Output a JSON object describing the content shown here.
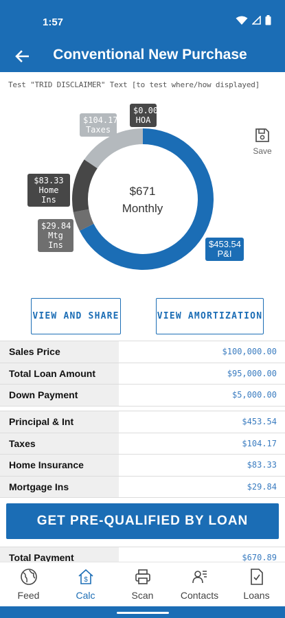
{
  "status": {
    "time": "1:57"
  },
  "header": {
    "title": "Conventional New Purchase"
  },
  "disclaimer": "Test \"TRID DISCLAIMER\" Text [to test where/how displayed]",
  "chart_data": {
    "type": "pie",
    "categories": [
      "P&I",
      "Mtg Ins",
      "Home Ins",
      "Taxes",
      "HOA"
    ],
    "values": [
      453.54,
      29.84,
      83.33,
      104.17,
      0.0
    ],
    "labels": [
      {
        "name": "P&I",
        "amount": "$453.54"
      },
      {
        "name": "Mtg Ins",
        "amount": "$29.84"
      },
      {
        "name": "Home Ins",
        "amount": "$83.33"
      },
      {
        "name": "Taxes",
        "amount": "$104.17"
      },
      {
        "name": "HOA",
        "amount": "$0.00"
      }
    ],
    "colors": [
      "#1b6db5",
      "#6f6f6f",
      "#474747",
      "#b4b9bd",
      "#474747"
    ],
    "center_amount": "$671",
    "center_label": "Monthly"
  },
  "save": {
    "label": "Save"
  },
  "buttons": {
    "share": "VIEW AND SHARE",
    "amortization": "VIEW AMORTIZATION",
    "prequalify": "GET PRE-QUALIFIED BY LOAN"
  },
  "loan_rows": [
    {
      "label": "Sales Price",
      "value": "$100,000.00"
    },
    {
      "label": "Total Loan Amount",
      "value": "$95,000.00"
    },
    {
      "label": "Down Payment",
      "value": "$5,000.00"
    }
  ],
  "payment_rows": [
    {
      "label": "Principal & Int",
      "value": "$453.54"
    },
    {
      "label": "Taxes",
      "value": "$104.17"
    },
    {
      "label": "Home Insurance",
      "value": "$83.33"
    },
    {
      "label": "Mortgage Ins",
      "value": "$29.84"
    }
  ],
  "total_row": {
    "label": "Total Payment",
    "value": "$670.89"
  },
  "nav": [
    {
      "label": "Feed",
      "icon": "globe-icon"
    },
    {
      "label": "Calc",
      "icon": "house-dollar-icon"
    },
    {
      "label": "Scan",
      "icon": "printer-icon"
    },
    {
      "label": "Contacts",
      "icon": "contacts-icon"
    },
    {
      "label": "Loans",
      "icon": "document-check-icon"
    }
  ],
  "accent_color": "#1b6db5"
}
